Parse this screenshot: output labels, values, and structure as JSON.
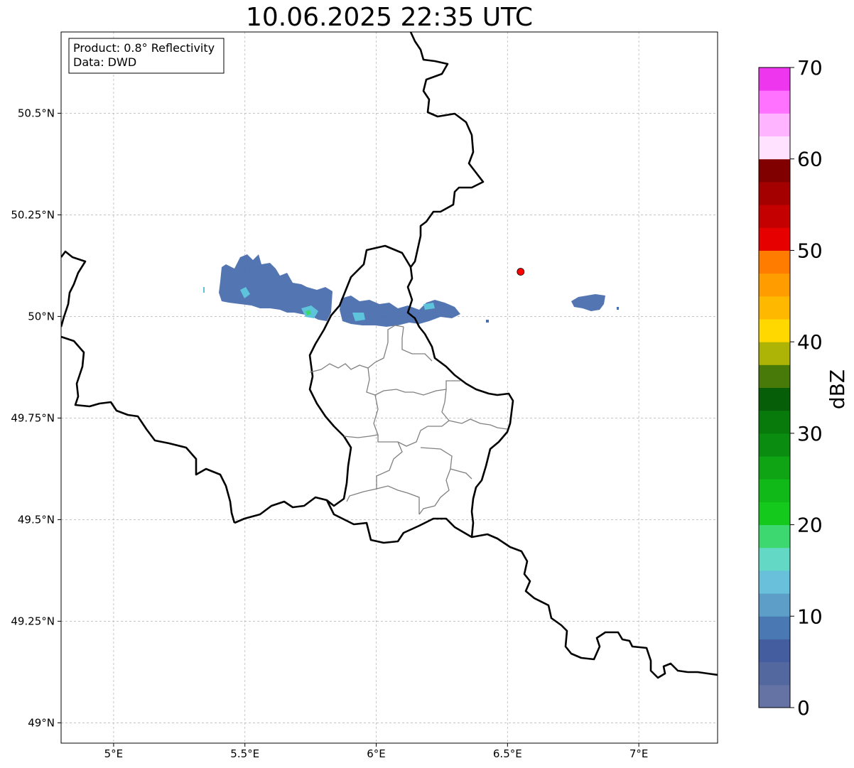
{
  "title": "10.06.2025 22:35 UTC",
  "info_box": {
    "product": "Product: 0.8° Reflectivity",
    "data_source": "Data: DWD"
  },
  "map": {
    "lon_range": [
      4.8,
      7.3
    ],
    "lat_range": [
      48.95,
      50.7
    ],
    "lon_ticks": [
      {
        "value": 5.0,
        "label": "5°E"
      },
      {
        "value": 5.5,
        "label": "5.5°E"
      },
      {
        "value": 6.0,
        "label": "6°E"
      },
      {
        "value": 6.5,
        "label": "6.5°E"
      },
      {
        "value": 7.0,
        "label": "7°E"
      }
    ],
    "lat_ticks": [
      {
        "value": 49.0,
        "label": "49°N"
      },
      {
        "value": 49.25,
        "label": "49.25°N"
      },
      {
        "value": 49.5,
        "label": "49.5°N"
      },
      {
        "value": 49.75,
        "label": "49.75°N"
      },
      {
        "value": 50.0,
        "label": "50°N"
      },
      {
        "value": 50.25,
        "label": "50.25°N"
      },
      {
        "value": 50.5,
        "label": "50.5°N"
      }
    ],
    "grid": true,
    "radar_site": {
      "lon": 6.55,
      "lat": 50.11,
      "color": "#ff0000"
    }
  },
  "colorbar": {
    "label": "dBZ",
    "min": 0,
    "max": 70,
    "step": 2.5,
    "ticks": [
      0,
      10,
      20,
      30,
      40,
      50,
      60,
      70
    ],
    "colors": [
      "#6473a4",
      "#5468a0",
      "#445d9e",
      "#4a78b2",
      "#5c9ec8",
      "#68c0db",
      "#63d8c5",
      "#3ed870",
      "#14c81c",
      "#10b818",
      "#0ea414",
      "#0a8c10",
      "#087a0c",
      "#065e08",
      "#487a0a",
      "#adb406",
      "#ffd800",
      "#ffb800",
      "#ff9c00",
      "#ff7c00",
      "#e60000",
      "#c40000",
      "#a40000",
      "#800000",
      "#ffe2ff",
      "#ffb4ff",
      "#ff72ff",
      "#ee36ee"
    ]
  }
}
